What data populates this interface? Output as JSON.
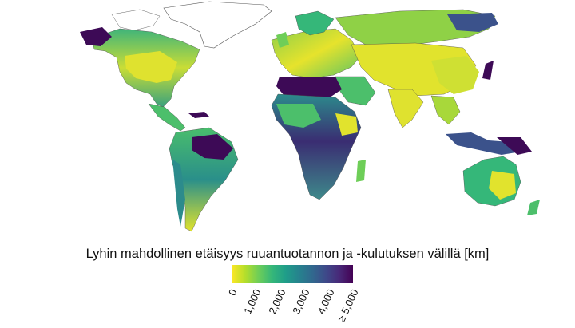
{
  "legend": {
    "title": "Lyhin mahdollinen etäisyys ruuantuotannon ja -kulutuksen välillä [km]",
    "ticks": [
      "0",
      "1,000",
      "2,000",
      "3,000",
      "4,000",
      "≥ 5,000"
    ],
    "tick_values": [
      0,
      1000,
      2000,
      3000,
      4000,
      5000
    ],
    "range": [
      0,
      5000
    ],
    "colormap": [
      "#fde725",
      "#b5de2b",
      "#6ece58",
      "#35b779",
      "#1f9e89",
      "#26828e",
      "#31688e",
      "#3e4989",
      "#482878",
      "#440154"
    ]
  },
  "map_colors": {
    "low": "#e9e32e",
    "mid_low": "#a8d83a",
    "mid": "#4cbf6b",
    "mid_high": "#2c8b8c",
    "high": "#3b528b",
    "max": "#3d0a56",
    "no_data": "#ffffff",
    "border": "#4a4a4a"
  }
}
